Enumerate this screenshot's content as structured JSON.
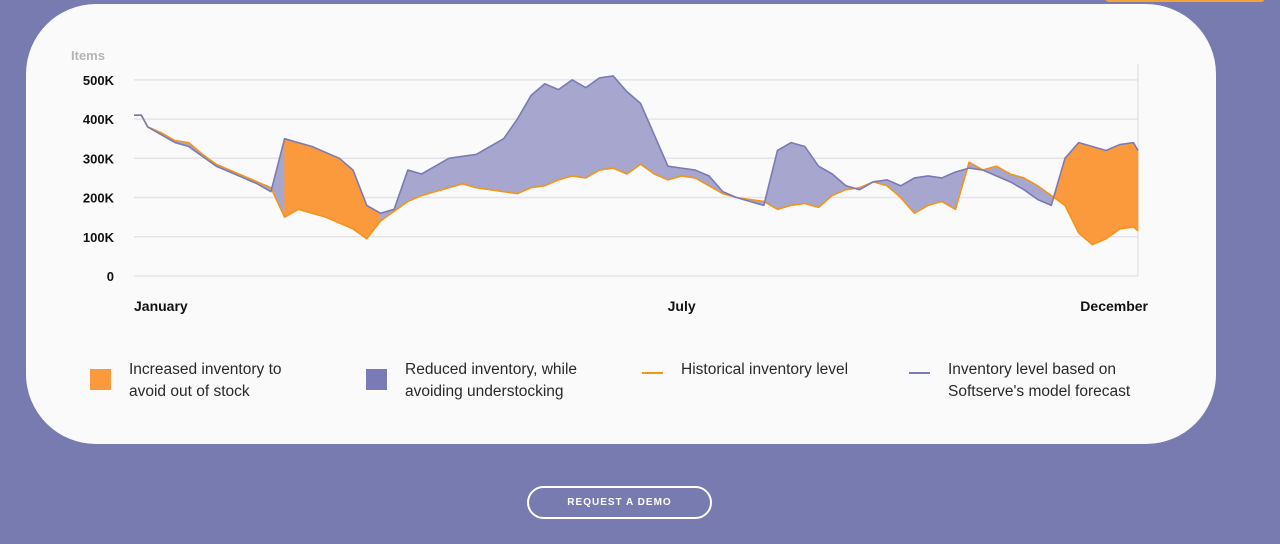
{
  "chart_data": {
    "type": "area",
    "ylabel": "Items",
    "yticks": [
      {
        "value": 500000,
        "label": "500K"
      },
      {
        "value": 400000,
        "label": "400K"
      },
      {
        "value": 300000,
        "label": "300K"
      },
      {
        "value": 200000,
        "label": "200K"
      },
      {
        "value": 100000,
        "label": "100K"
      },
      {
        "value": 0,
        "label": "0"
      }
    ],
    "ylim": [
      0,
      520000
    ],
    "xlim": [
      1,
      12
    ],
    "xticks": [
      {
        "value": 1,
        "label": "January"
      },
      {
        "value": 7,
        "label": "July"
      },
      {
        "value": 12,
        "label": "December"
      }
    ],
    "grid": true,
    "colors": {
      "increased": "#fb9a3c",
      "reduced": "#a6a6cf",
      "historical_line": "#f3941c",
      "forecast_line": "#7a7ab6"
    },
    "historical": {
      "x": [
        1.0,
        1.08,
        1.15,
        1.3,
        1.45,
        1.6,
        1.75,
        1.9,
        2.05,
        2.2,
        2.35,
        2.5,
        2.65,
        2.8,
        2.95,
        3.1,
        3.25,
        3.4,
        3.55,
        3.7,
        3.85,
        4.0,
        4.15,
        4.3,
        4.45,
        4.6,
        4.75,
        4.9,
        5.05,
        5.2,
        5.35,
        5.5,
        5.65,
        5.8,
        5.95,
        6.1,
        6.25,
        6.4,
        6.55,
        6.7,
        6.85,
        7.0,
        7.15,
        7.3,
        7.45,
        7.6,
        7.75,
        7.9,
        8.05,
        8.2,
        8.35,
        8.5,
        8.65,
        8.8,
        8.95,
        9.1,
        9.25,
        9.4,
        9.55,
        9.7,
        9.85,
        10.0,
        10.15,
        10.3,
        10.45,
        10.6,
        10.75,
        10.9,
        11.05,
        11.2,
        11.35,
        11.5,
        11.65,
        11.8,
        11.95,
        12.0
      ],
      "y": [
        410000,
        410000,
        380000,
        365000,
        345000,
        340000,
        310000,
        285000,
        270000,
        255000,
        240000,
        225000,
        150000,
        170000,
        160000,
        150000,
        135000,
        120000,
        95000,
        140000,
        165000,
        190000,
        205000,
        215000,
        225000,
        235000,
        225000,
        220000,
        215000,
        210000,
        225000,
        230000,
        245000,
        255000,
        250000,
        270000,
        275000,
        260000,
        285000,
        260000,
        245000,
        255000,
        250000,
        230000,
        210000,
        200000,
        195000,
        190000,
        170000,
        180000,
        185000,
        175000,
        205000,
        220000,
        225000,
        240000,
        230000,
        200000,
        160000,
        180000,
        190000,
        170000,
        290000,
        270000,
        280000,
        260000,
        250000,
        230000,
        205000,
        180000,
        110000,
        80000,
        95000,
        120000,
        125000,
        115000
      ]
    },
    "forecast": {
      "x": [
        1.0,
        1.08,
        1.15,
        1.3,
        1.45,
        1.6,
        1.75,
        1.9,
        2.05,
        2.2,
        2.35,
        2.5,
        2.65,
        2.8,
        2.95,
        3.1,
        3.25,
        3.4,
        3.55,
        3.7,
        3.85,
        4.0,
        4.15,
        4.3,
        4.45,
        4.6,
        4.75,
        4.9,
        5.05,
        5.2,
        5.35,
        5.5,
        5.65,
        5.8,
        5.95,
        6.1,
        6.25,
        6.4,
        6.55,
        6.7,
        6.85,
        7.0,
        7.15,
        7.3,
        7.45,
        7.6,
        7.75,
        7.9,
        8.05,
        8.2,
        8.35,
        8.5,
        8.65,
        8.8,
        8.95,
        9.1,
        9.25,
        9.4,
        9.55,
        9.7,
        9.85,
        10.0,
        10.15,
        10.3,
        10.45,
        10.6,
        10.75,
        10.9,
        11.05,
        11.2,
        11.35,
        11.5,
        11.65,
        11.8,
        11.95,
        12.0
      ],
      "y": [
        410000,
        410000,
        380000,
        360000,
        340000,
        330000,
        305000,
        280000,
        265000,
        250000,
        235000,
        215000,
        350000,
        340000,
        330000,
        315000,
        300000,
        270000,
        180000,
        160000,
        170000,
        270000,
        260000,
        280000,
        300000,
        305000,
        310000,
        330000,
        350000,
        400000,
        460000,
        490000,
        475000,
        500000,
        480000,
        505000,
        510000,
        470000,
        440000,
        360000,
        280000,
        275000,
        270000,
        255000,
        215000,
        200000,
        190000,
        180000,
        320000,
        340000,
        330000,
        280000,
        260000,
        230000,
        220000,
        240000,
        245000,
        230000,
        250000,
        255000,
        250000,
        265000,
        275000,
        270000,
        255000,
        240000,
        220000,
        195000,
        180000,
        300000,
        340000,
        330000,
        320000,
        335000,
        340000,
        320000
      ]
    }
  },
  "legend": [
    {
      "line1": "Increased inventory to",
      "line2": "avoid out of stock",
      "color": "#fb9a3c",
      "kind": "swatch"
    },
    {
      "line1": "Reduced inventory, while",
      "line2": "avoiding understocking",
      "color": "#7a7ab6",
      "kind": "swatch"
    },
    {
      "line1": "Historical inventory level",
      "line2": "",
      "color": "#f3941c",
      "kind": "line"
    },
    {
      "line1": "Inventory level based on",
      "line2": "Softserve's model forecast",
      "color": "#7a7ab6",
      "kind": "line"
    }
  ],
  "cta": {
    "label": "REQUEST A DEMO"
  }
}
